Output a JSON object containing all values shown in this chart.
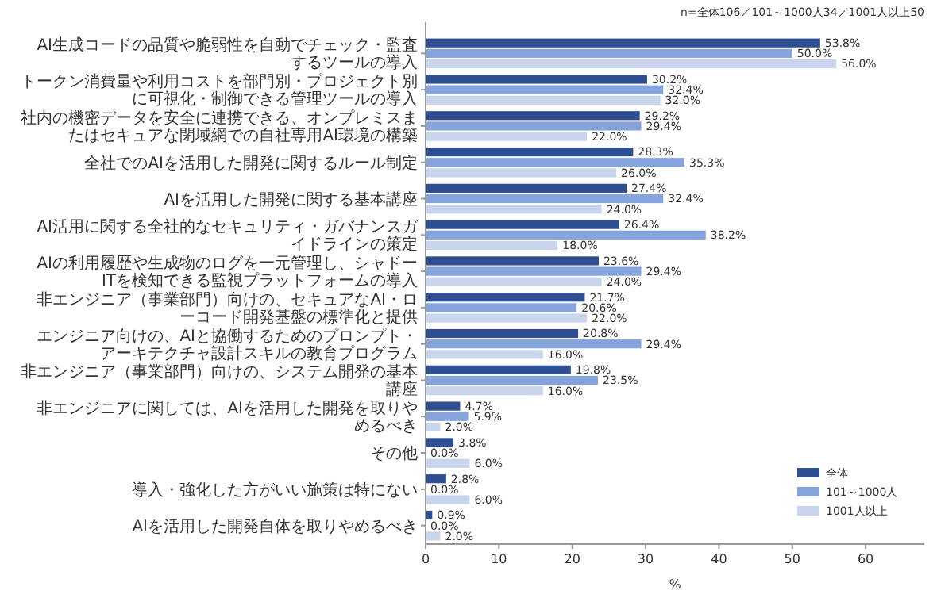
{
  "chart_data": {
    "type": "bar",
    "orientation": "horizontal",
    "xlabel": "%",
    "annotations": [
      "n=全体106／101～1000人34／1001人以上50"
    ],
    "categories": [
      "AI生成コードの品質や脆弱性を自動でチェック・監査するツールの導入",
      "トークン消費量や利用コストを部門別・プロジェクト別に可視化・制御できる管理ツールの導入",
      "社内の機密データを安全に連携できる、オンプレミスまたはセキュアな閉域網での自社専用AI環境の構築",
      "全社でのAIを活用した開発に関するルール制定",
      "AIを活用した開発に関する基本講座",
      "AI活用に関する全社的なセキュリティ・ガバナンスガイドラインの策定",
      "AIの利用履歴や生成物のログを一元管理し、シャドーITを検知できる監視プラットフォームの導入",
      "非エンジニア（事業部門）向けの、セキュアなAI・ローコード開発基盤の標準化と提供",
      "エンジニア向けの、AIと協働するためのプロンプト・アーキテクチャ設計スキルの教育プログラム",
      "非エンジニア（事業部門）向けの、システム開発の基本講座",
      "非エンジニアに関しては、AIを活用した開発を取りやめるべき",
      "その他",
      "導入・強化した方がいい施策は特にない",
      "AIを活用した開発自体を取りやめるべき"
    ],
    "series": [
      {
        "name": "全体",
        "color": "#2f4f93",
        "values": [
          53.8,
          30.2,
          29.2,
          28.3,
          27.4,
          26.4,
          23.6,
          21.7,
          20.8,
          19.8,
          4.7,
          3.8,
          2.8,
          0.9
        ],
        "value_labels": [
          "53.8%",
          "30.2%",
          "29.2%",
          "28.3%",
          "27.4%",
          "26.4%",
          "23.6%",
          "21.7%",
          "20.8%",
          "19.8%",
          "4.7%",
          "3.8%",
          "2.8%",
          "0.9%"
        ]
      },
      {
        "name": "101～1000人",
        "color": "#86a4dc",
        "values": [
          50.0,
          32.4,
          29.4,
          35.3,
          32.4,
          38.2,
          29.4,
          20.6,
          29.4,
          23.5,
          5.9,
          0.0,
          0.0,
          0.0
        ],
        "value_labels": [
          "50.0%",
          "32.4%",
          "29.4%",
          "35.3%",
          "32.4%",
          "38.2%",
          "29.4%",
          "20.6%",
          "29.4%",
          "23.5%",
          "5.9%",
          "0.0%",
          "0.0%",
          "0.0%"
        ]
      },
      {
        "name": "1001人以上",
        "color": "#c9d5ec",
        "values": [
          56.0,
          32.0,
          22.0,
          26.0,
          24.0,
          18.0,
          24.0,
          22.0,
          16.0,
          16.0,
          2.0,
          6.0,
          6.0,
          2.0
        ],
        "value_labels": [
          "56.0%",
          "32.0%",
          "22.0%",
          "26.0%",
          "24.0%",
          "18.0%",
          "24.0%",
          "22.0%",
          "16.0%",
          "16.0%",
          "2.0%",
          "6.0%",
          "6.0%",
          "2.0%"
        ]
      }
    ],
    "xlim": [
      0,
      68
    ],
    "xticks": [
      0,
      10,
      20,
      30,
      40,
      50,
      60
    ],
    "grid": false,
    "legend": "bottom right"
  }
}
